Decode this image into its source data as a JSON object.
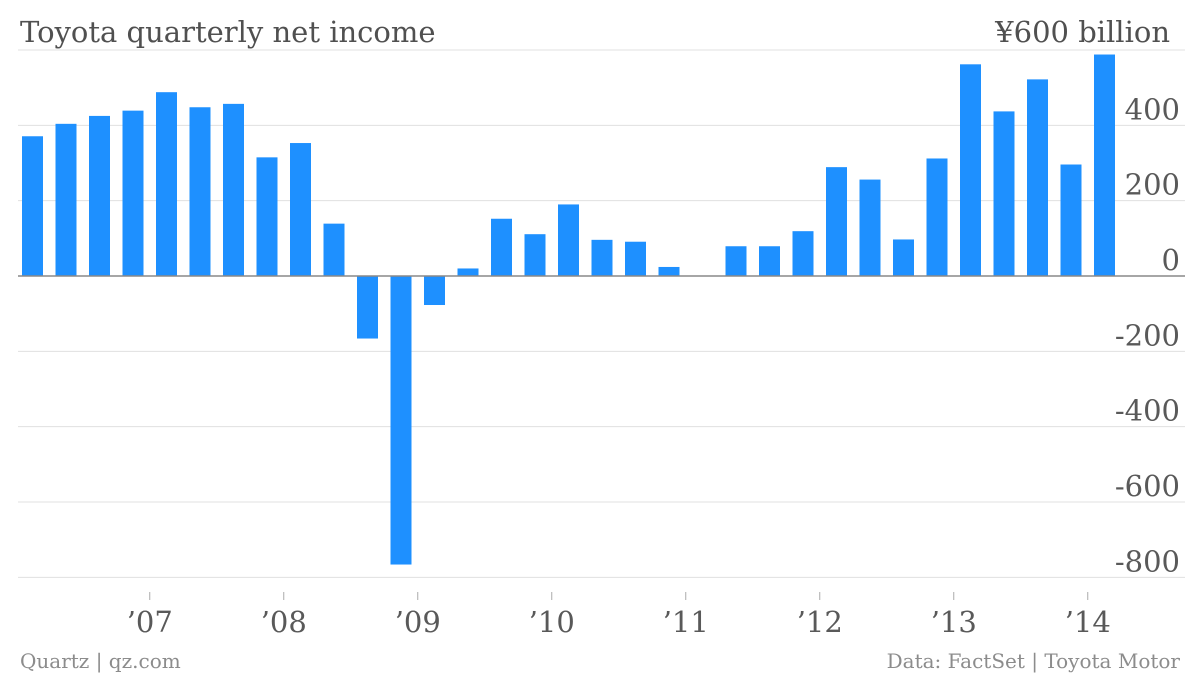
{
  "chart_data": {
    "type": "bar",
    "title": "Toyota quarterly net income",
    "unit_label": "¥600 billion",
    "ylim": [
      -850,
      600
    ],
    "y_ticks": [
      {
        "value": 400,
        "label": "400"
      },
      {
        "value": 200,
        "label": "200"
      },
      {
        "value": 0,
        "label": "0"
      },
      {
        "value": -200,
        "label": "-200"
      },
      {
        "value": -400,
        "label": "-400"
      },
      {
        "value": -600,
        "label": "-600"
      },
      {
        "value": -800,
        "label": "-800"
      }
    ],
    "x_ticks": [
      {
        "index": 3,
        "label": "’07"
      },
      {
        "index": 7,
        "label": "’08"
      },
      {
        "index": 11,
        "label": "’09"
      },
      {
        "index": 15,
        "label": "’10"
      },
      {
        "index": 19,
        "label": "’11"
      },
      {
        "index": 23,
        "label": "’12"
      },
      {
        "index": 27,
        "label": "’13"
      },
      {
        "index": 31,
        "label": "’14"
      }
    ],
    "grid": true,
    "bar_color": "#1e90ff",
    "series": [
      {
        "values": [
          371,
          404,
          425,
          439,
          488,
          448,
          457,
          315,
          353,
          139,
          -166,
          -766,
          -77,
          20,
          152,
          111,
          190,
          96,
          91,
          24,
          1,
          79,
          79,
          119,
          289,
          256,
          97,
          312,
          562,
          437,
          522,
          296,
          588
        ]
      }
    ]
  },
  "footer": {
    "left": "Quartz | qz.com",
    "right": "Data: FactSet | Toyota Motor"
  }
}
